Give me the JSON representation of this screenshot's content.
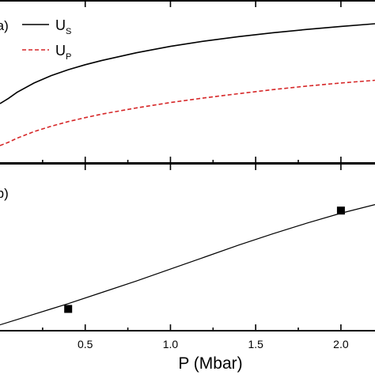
{
  "chart_data": [
    {
      "panel_label": "(a)",
      "type": "line",
      "xlim": [
        0.0,
        2.2
      ],
      "legend_position": "top-left",
      "series": [
        {
          "name": "U",
          "name_subscript": "S",
          "color": "#000000",
          "style": "solid",
          "x": [
            0.0,
            0.05,
            0.1,
            0.2,
            0.3,
            0.4,
            0.5,
            0.6,
            0.8,
            1.0,
            1.2,
            1.4,
            1.6,
            1.8,
            2.0,
            2.2
          ],
          "y": [
            0.315,
            0.355,
            0.4,
            0.47,
            0.525,
            0.57,
            0.607,
            0.64,
            0.697,
            0.745,
            0.785,
            0.818,
            0.847,
            0.872,
            0.895,
            0.915
          ]
        },
        {
          "name": "U",
          "name_subscript": "P",
          "color": "#d62728",
          "style": "dashed",
          "x": [
            0.0,
            0.05,
            0.1,
            0.2,
            0.3,
            0.4,
            0.5,
            0.6,
            0.8,
            1.0,
            1.2,
            1.4,
            1.6,
            1.8,
            2.0,
            2.2
          ],
          "y": [
            0.0,
            0.025,
            0.055,
            0.105,
            0.145,
            0.18,
            0.21,
            0.237,
            0.283,
            0.323,
            0.358,
            0.39,
            0.42,
            0.447,
            0.47,
            0.49
          ]
        }
      ]
    },
    {
      "panel_label": "(b)",
      "type": "line",
      "xlim": [
        0.0,
        2.2
      ],
      "xlabel": "P (Mbar)",
      "x_ticks": [
        0.5,
        1.0,
        1.5,
        2.0
      ],
      "x_tick_labels": [
        "0.5",
        "1.0",
        "1.5",
        "2.0"
      ],
      "series": [
        {
          "name": "",
          "color": "#000000",
          "style": "solid",
          "x": [
            0.0,
            0.1,
            0.2,
            0.3,
            0.4,
            0.6,
            0.8,
            1.0,
            1.2,
            1.4,
            1.6,
            1.8,
            2.0,
            2.2
          ],
          "y": [
            0.02,
            0.06,
            0.1,
            0.14,
            0.18,
            0.265,
            0.35,
            0.44,
            0.53,
            0.62,
            0.705,
            0.785,
            0.86,
            0.925
          ]
        },
        {
          "name": "",
          "type": "scatter",
          "marker": "square",
          "color": "#000000",
          "x": [
            0.4,
            2.0
          ],
          "y": [
            0.14,
            0.88
          ]
        }
      ]
    }
  ]
}
